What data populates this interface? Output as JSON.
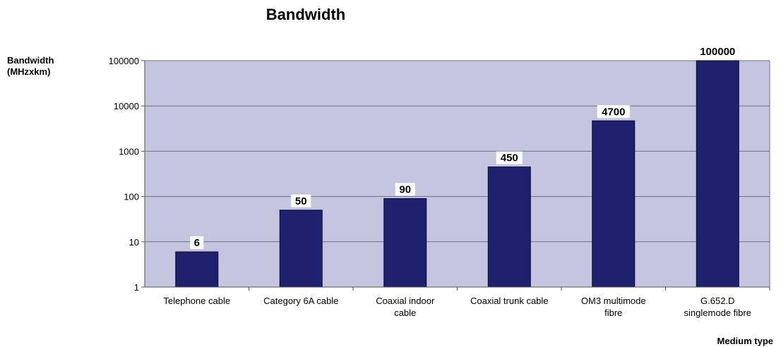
{
  "chart_data": {
    "type": "bar",
    "title": "Bandwidth",
    "ylabel_lines": [
      "Bandwidth",
      "(MHzxkm)"
    ],
    "xlabel": "Medium type",
    "yscale": "log",
    "ylim": [
      1,
      100000
    ],
    "yticks": [
      "1",
      "10",
      "100",
      "1000",
      "10000",
      "100000"
    ],
    "grid": true,
    "categories": [
      [
        "Telephone cable"
      ],
      [
        "Category 6A cable"
      ],
      [
        "Coaxial indoor",
        "cable"
      ],
      [
        "Coaxial trunk cable"
      ],
      [
        "OM3 multimode",
        "fibre"
      ],
      [
        "G.652.D",
        "singlemode fibre"
      ]
    ],
    "values": [
      6,
      50,
      90,
      450,
      4700,
      100000
    ],
    "data_labels": [
      "6",
      "50",
      "90",
      "450",
      "4700",
      "100000"
    ]
  },
  "colors": {
    "plot_bg": "#c5c5e0",
    "bar": "#20206e",
    "bar_edge": "#0a0a3a",
    "grid": "#6e6e8c",
    "axis": "#555555",
    "label_bg": "#ffffff"
  }
}
